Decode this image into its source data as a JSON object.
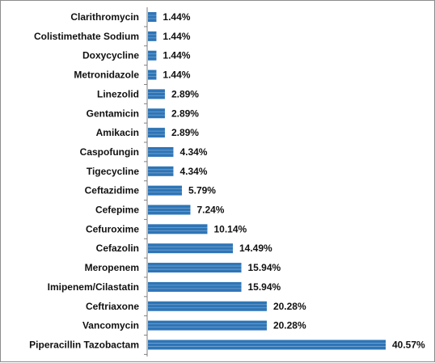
{
  "chart_data": {
    "type": "bar",
    "orientation": "horizontal",
    "categories": [
      "Clarithromycin",
      "Colistimethate Sodium",
      "Doxycycline",
      "Metronidazole",
      "Linezolid",
      "Gentamicin",
      "Amikacin",
      "Caspofungin",
      "Tigecycline",
      "Ceftazidime",
      "Cefepime",
      "Cefuroxime",
      "Cefazolin",
      "Meropenem",
      "Imipenem/Cilastatin",
      "Ceftriaxone",
      "Vancomycin",
      "Piperacillin Tazobactam"
    ],
    "values": [
      1.44,
      1.44,
      1.44,
      1.44,
      2.89,
      2.89,
      2.89,
      4.34,
      4.34,
      5.79,
      7.24,
      10.14,
      14.49,
      15.94,
      15.94,
      20.28,
      20.28,
      40.57
    ],
    "value_labels": [
      "1.44%",
      "1.44%",
      "1.44%",
      "1.44%",
      "2.89%",
      "2.89%",
      "2.89%",
      "4.34%",
      "4.34%",
      "5.79%",
      "7.24%",
      "10.14%",
      "14.49%",
      "15.94%",
      "15.94%",
      "20.28%",
      "20.28%",
      "40.57%"
    ],
    "value_unit": "%",
    "title": "",
    "xlabel": "",
    "ylabel": "",
    "xlim": [
      0,
      42
    ],
    "grid": false,
    "legend": "none",
    "bar_color": "#2e75b6",
    "bar_edge_color": "#ffffff"
  }
}
